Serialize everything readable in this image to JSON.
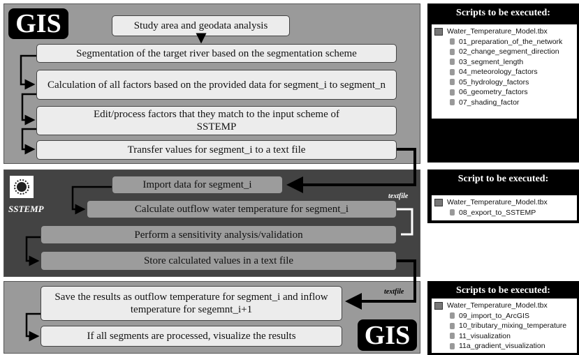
{
  "panels": [
    {
      "logo": "GIS",
      "steps": [
        "Study area and geodata analysis",
        "Segmentation of the target river based on the segmentation scheme",
        "Calculation of all factors based on the provided data for segment_i to segment_n",
        "Edit/process factors that they match to the input scheme of SSTEMP",
        "Transfer values for segment_i to a text file"
      ]
    },
    {
      "logo": "SSTEMP",
      "note": "textfile",
      "steps": [
        "Import data for segment_i",
        "Calculate outflow water temperature for segment_i",
        "Perform a sensitivity analysis/validation",
        "Store calculated values in a text file"
      ]
    },
    {
      "logo": "GIS",
      "note": "textfile",
      "steps": [
        "Save the results as outflow temperature for segment_i and inflow temperature for segemnt_i+1",
        "If all segments are processed, visualize the results"
      ]
    }
  ],
  "scripts": [
    {
      "title": "Scripts to be executed:",
      "toolbox": "Water_Temperature_Model.tbx",
      "items": [
        "01_preparation_of_the_network",
        "02_change_segment_direction",
        "03_segment_length",
        "04_meteorology_factors",
        "05_hydrology_factors",
        "06_geometry_factors",
        "07_shading_factor"
      ]
    },
    {
      "title": "Script to be executed:",
      "toolbox": "Water_Temperature_Model.tbx",
      "items": [
        "08_export_to_SSTEMP"
      ]
    },
    {
      "title": "Scripts to be executed:",
      "toolbox": "Water_Temperature_Model.tbx",
      "items": [
        "09_import_to_ArcGIS",
        "10_tributary_mixing_temperature",
        "11_visualization",
        "11a_gradient_visualization"
      ]
    }
  ]
}
